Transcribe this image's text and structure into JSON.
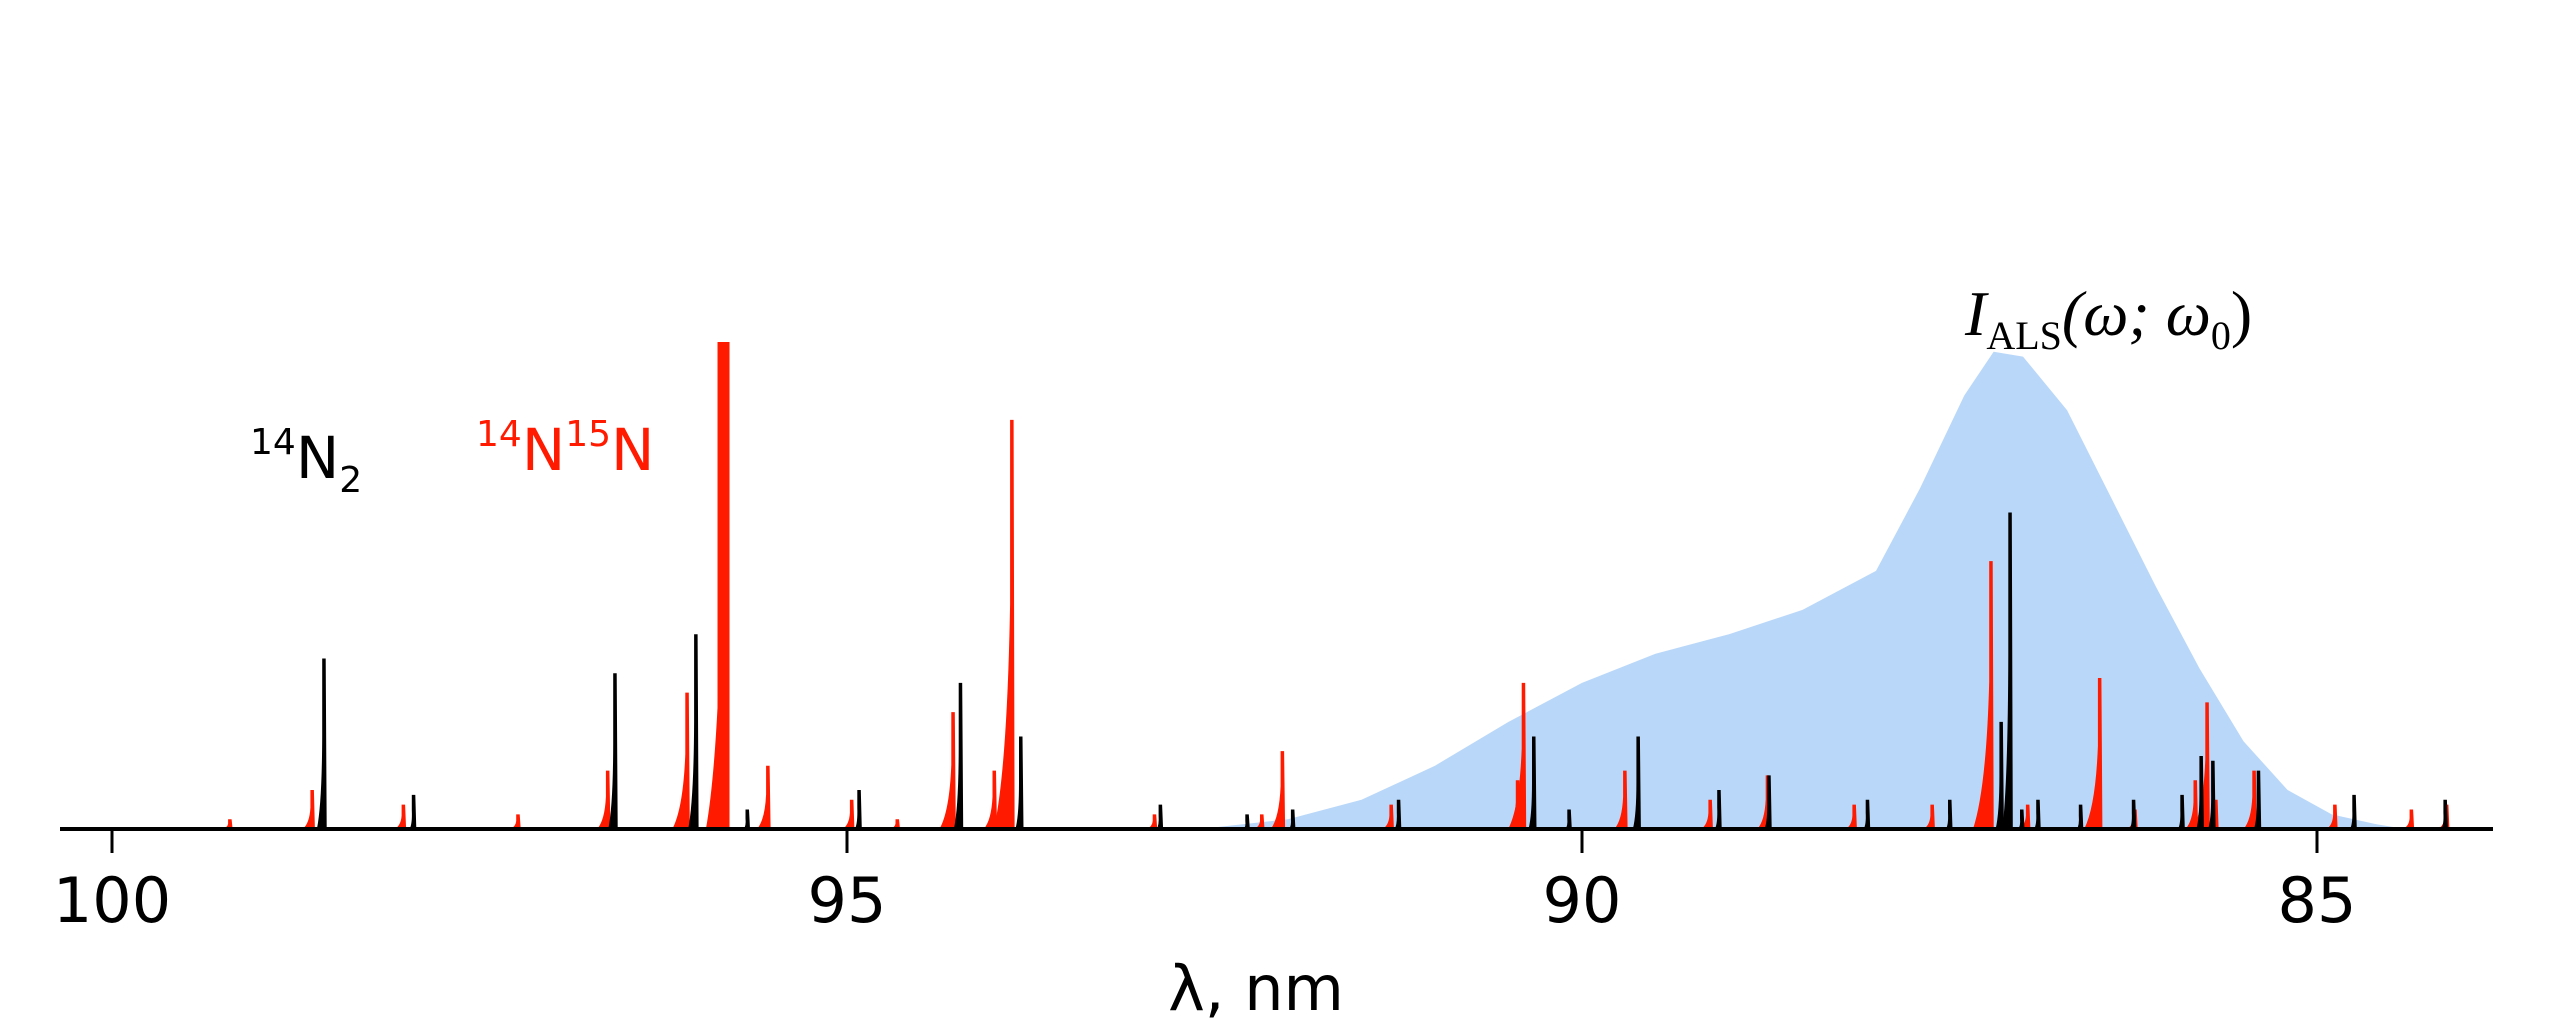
{
  "chart_data": {
    "type": "area",
    "title": "",
    "xlabel": "λ, nm",
    "ylabel": "",
    "xlim": [
      100.35,
      83.8
    ],
    "x_reversed": true,
    "ylim": [
      0,
      1
    ],
    "xticks": [
      100,
      95,
      90,
      85
    ],
    "xtick_labels": [
      "100",
      "95",
      "90",
      "85"
    ],
    "grid": false,
    "colors": {
      "n14n14": "#000000",
      "n14n15": "#ff1a00",
      "envelope": "#b9d7f9"
    },
    "annotations": {
      "n2": {
        "sup": "14",
        "base": "N",
        "sub": "2"
      },
      "n14n15": {
        "sup1": "14",
        "base1": "N",
        "sup2": "15",
        "base2": "N"
      },
      "als": {
        "main": "I",
        "sub": "ALS",
        "args": "(ω; ω",
        "sub2": "0",
        "close": ")"
      }
    },
    "envelope": {
      "name": "I_ALS(ω; ω0)",
      "x": [
        92.6,
        92.3,
        92.0,
        91.5,
        91.0,
        90.5,
        90.0,
        89.5,
        89.0,
        88.5,
        88.0,
        87.7,
        87.4,
        87.2,
        87.0,
        86.7,
        86.4,
        86.1,
        85.8,
        85.5,
        85.2,
        84.9,
        84.6,
        84.4
      ],
      "y": [
        0,
        0.01,
        0.02,
        0.06,
        0.13,
        0.22,
        0.3,
        0.36,
        0.4,
        0.45,
        0.53,
        0.7,
        0.89,
        0.98,
        0.97,
        0.86,
        0.68,
        0.5,
        0.33,
        0.18,
        0.08,
        0.03,
        0.01,
        0
      ]
    },
    "series": [
      {
        "name": "14N15N",
        "x": [
          99.2,
          98.64,
          98.02,
          97.24,
          96.63,
          96.09,
          95.84,
          95.54,
          94.97,
          94.66,
          94.28,
          94.0,
          93.88,
          92.91,
          92.18,
          92.04,
          91.3,
          90.44,
          90.4,
          89.71,
          89.13,
          88.74,
          88.15,
          87.62,
          87.22,
          86.97,
          86.48,
          86.24,
          85.83,
          85.75,
          85.69,
          85.43,
          84.88,
          84.36,
          84.12
        ],
        "y": [
          0.02,
          0.08,
          0.05,
          0.03,
          0.12,
          0.28,
          1.0,
          0.13,
          0.06,
          0.02,
          0.24,
          0.12,
          0.84,
          0.03,
          0.03,
          0.16,
          0.05,
          0.1,
          0.3,
          0.12,
          0.06,
          0.11,
          0.05,
          0.05,
          0.55,
          0.05,
          0.31,
          0.04,
          0.1,
          0.26,
          0.06,
          0.12,
          0.05,
          0.04,
          0.05
        ]
      },
      {
        "name": "14N2",
        "x": [
          98.56,
          97.95,
          96.58,
          96.03,
          95.68,
          94.92,
          94.23,
          93.82,
          92.87,
          92.28,
          91.97,
          91.25,
          90.33,
          90.09,
          89.62,
          89.07,
          88.73,
          88.06,
          87.5,
          87.15,
          87.09,
          87.01,
          86.9,
          86.61,
          86.25,
          85.92,
          85.79,
          85.71,
          85.4,
          84.75,
          84.13
        ],
        "y": [
          0.35,
          0.07,
          0.32,
          0.4,
          0.04,
          0.08,
          0.3,
          0.19,
          0.05,
          0.03,
          0.04,
          0.06,
          0.19,
          0.04,
          0.19,
          0.08,
          0.11,
          0.06,
          0.06,
          0.22,
          0.65,
          0.04,
          0.06,
          0.05,
          0.06,
          0.07,
          0.15,
          0.14,
          0.12,
          0.07,
          0.06
        ]
      }
    ]
  }
}
